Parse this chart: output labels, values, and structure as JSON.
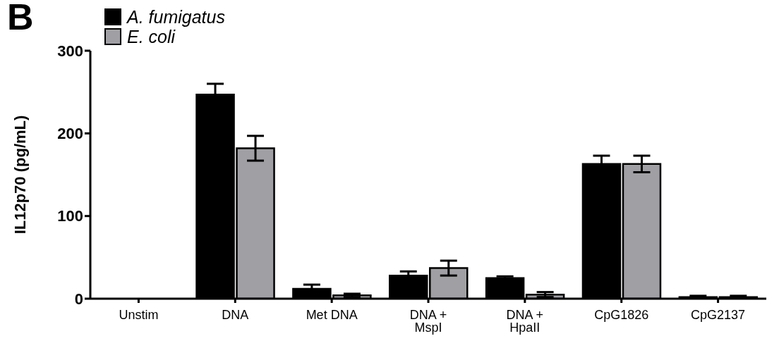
{
  "chart_data": {
    "type": "bar",
    "title": "B",
    "ylabel": "IL12p70 (pg/mL)",
    "categories": [
      "Unstim",
      "DNA",
      "Met DNA",
      "DNA + MspI",
      "DNA + HpaII",
      "CpG1826",
      "CpG2137"
    ],
    "series": [
      {
        "name": "A. fumigatus",
        "color": "#000000",
        "values": [
          0,
          247,
          12,
          28,
          25,
          163,
          2
        ],
        "errors": [
          0,
          13,
          5,
          5,
          2,
          10,
          1.5
        ]
      },
      {
        "name": "E. coli",
        "color": "#a0a0a4",
        "values": [
          0,
          182,
          4,
          37,
          5,
          163,
          2
        ],
        "errors": [
          0,
          15,
          2,
          9,
          3,
          10,
          1.5
        ]
      }
    ],
    "ylim": [
      0,
      300
    ],
    "yticks": [
      0,
      100,
      200,
      300
    ],
    "grid": false,
    "legend": "top left"
  }
}
